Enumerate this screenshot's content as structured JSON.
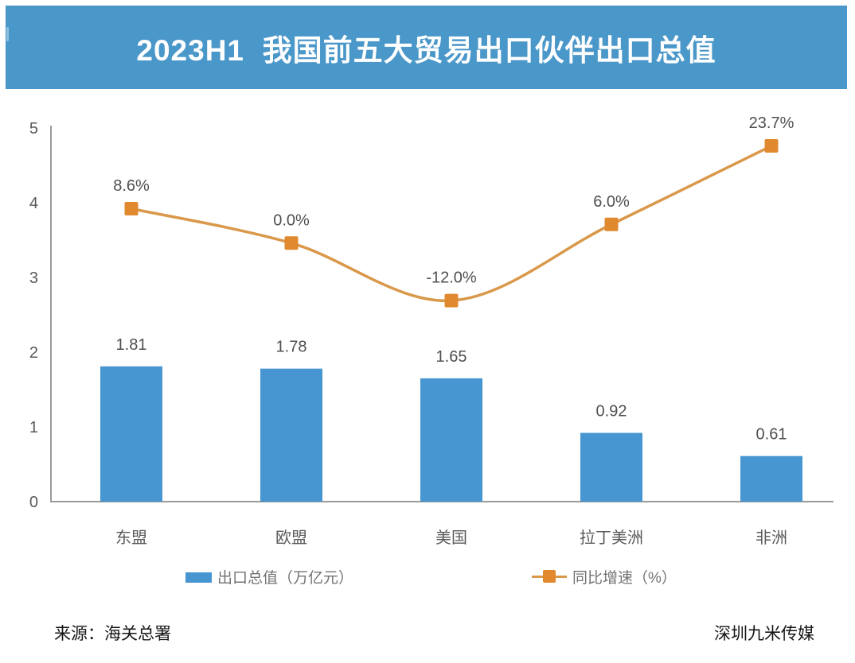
{
  "title": "2023H1  我国前五大贸易出口伙伴出口总值",
  "footer": {
    "source_left": "来源：海关总署",
    "source_right": "深圳九米传媒"
  },
  "colors": {
    "banner_bg": "#4a97c9",
    "banner_text": "#ffffff",
    "bar_fill": "#4795d1",
    "line_stroke": "#d9984a",
    "marker_fill": "#e0892f",
    "axis_line": "#9b9b9b",
    "tick_text": "#595959",
    "category_text": "#595959",
    "data_label_text": "#4f4f4f",
    "legend_text": "#737373",
    "footer_text": "#161616"
  },
  "chart_data": {
    "type": "bar",
    "subtype": "bar-line-combo",
    "title": "2023H1  我国前五大贸易出口伙伴出口总值",
    "categories": [
      "东盟",
      "欧盟",
      "美国",
      "拉丁美洲",
      "非洲"
    ],
    "series": [
      {
        "name": "出口总值（万亿元）",
        "type": "bar",
        "values": [
          1.81,
          1.78,
          1.65,
          0.92,
          0.61
        ],
        "labels": [
          "1.81",
          "1.78",
          "1.65",
          "0.92",
          "0.61"
        ]
      },
      {
        "name": "同比增速（%）",
        "type": "line",
        "values": [
          8.6,
          0.0,
          -12.0,
          6.0,
          23.7
        ],
        "labels": [
          "8.6%",
          "0.0%",
          "-12.0%",
          "6.0%",
          "23.7%"
        ],
        "display_positions_left_axis": [
          3.92,
          3.46,
          2.69,
          3.71,
          4.76
        ]
      }
    ],
    "xlabel": "",
    "ylabel": "",
    "y_axis": {
      "min": 0,
      "max": 5,
      "ticks": [
        0,
        1,
        2,
        3,
        4,
        5
      ]
    },
    "grid": false,
    "legend_position": "bottom"
  }
}
